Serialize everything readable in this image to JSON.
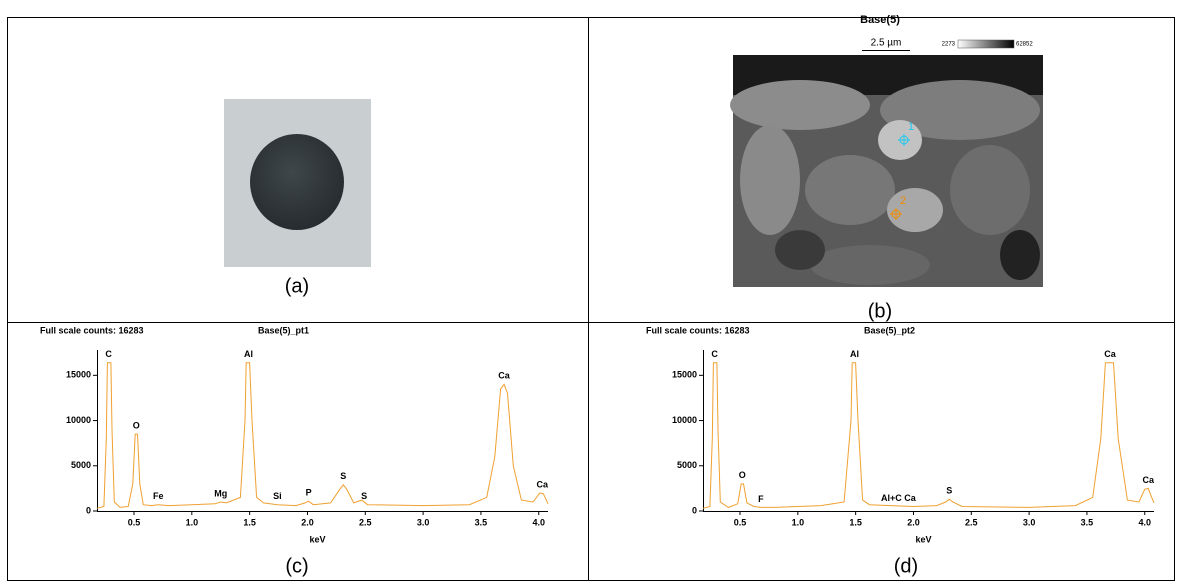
{
  "panels": {
    "a": "(a)",
    "b": "(b)",
    "c": "(c)",
    "d": "(d)"
  },
  "sem": {
    "title": "Base(5)",
    "scale_bar": "2.5 µm",
    "colorbar_min": 2273,
    "colorbar_max": 62852,
    "points": [
      1,
      2
    ]
  },
  "chart_data": [
    {
      "type": "line",
      "header": "Full scale counts: 16283",
      "title": "Base(5)_pt1",
      "x_label": "keV",
      "color": "#f0a030",
      "x": [
        0.18,
        0.24,
        0.26,
        0.27,
        0.3,
        0.31,
        0.33,
        0.38,
        0.45,
        0.49,
        0.51,
        0.53,
        0.55,
        0.58,
        0.65,
        0.71,
        0.8,
        1.0,
        1.2,
        1.25,
        1.3,
        1.42,
        1.46,
        1.47,
        1.5,
        1.52,
        1.56,
        1.62,
        1.74,
        1.9,
        1.98,
        2.01,
        2.05,
        2.2,
        2.28,
        2.31,
        2.34,
        2.4,
        2.47,
        2.52,
        3.0,
        3.4,
        3.55,
        3.62,
        3.67,
        3.7,
        3.73,
        3.78,
        3.85,
        3.95,
        4.01,
        4.04,
        4.08
      ],
      "values": [
        300,
        500,
        8000,
        16400,
        16400,
        9000,
        1000,
        400,
        500,
        3000,
        8500,
        8500,
        3000,
        700,
        600,
        700,
        600,
        700,
        800,
        1000,
        900,
        1500,
        10000,
        16400,
        16400,
        10000,
        1500,
        900,
        700,
        600,
        900,
        1100,
        700,
        900,
        2400,
        2900,
        2400,
        900,
        1200,
        700,
        600,
        700,
        1500,
        6000,
        13500,
        14000,
        13000,
        5000,
        1200,
        1000,
        2000,
        1900,
        800
      ],
      "xlim": [
        0.18,
        4.08
      ],
      "ylim": [
        0,
        17800
      ],
      "xticks": [
        0.5,
        {
          "value": 1,
          "label": "1.0"
        },
        1.5,
        {
          "value": 2,
          "label": "2.0"
        },
        2.5,
        {
          "value": 3,
          "label": "3.0"
        },
        3.5,
        {
          "value": 4,
          "label": "4.0"
        }
      ],
      "yticks": [
        0,
        5000,
        10000,
        15000
      ],
      "peaks": [
        {
          "label": "C",
          "x": 0.28,
          "y": 16400
        },
        {
          "label": "O",
          "x": 0.52,
          "y": 8500
        },
        {
          "label": "Fe",
          "x": 0.71,
          "y": 700
        },
        {
          "label": "Mg",
          "x": 1.25,
          "y": 1000
        },
        {
          "label": "Al",
          "x": 1.49,
          "y": 16400
        },
        {
          "label": "Si",
          "x": 1.74,
          "y": 700
        },
        {
          "label": "P",
          "x": 2.01,
          "y": 1100
        },
        {
          "label": "S",
          "x": 2.31,
          "y": 2900
        },
        {
          "label": "S",
          "x": 2.49,
          "y": 700
        },
        {
          "label": "Ca",
          "x": 3.7,
          "y": 14000
        },
        {
          "label": "Ca",
          "x": 4.03,
          "y": 2000
        }
      ]
    },
    {
      "type": "line",
      "header": "Full scale counts: 16283",
      "title": "Base(5)_pt2",
      "x_label": "keV",
      "color": "#f0a030",
      "x": [
        0.18,
        0.24,
        0.26,
        0.27,
        0.3,
        0.31,
        0.33,
        0.4,
        0.48,
        0.51,
        0.53,
        0.56,
        0.62,
        0.68,
        0.8,
        1.0,
        1.2,
        1.4,
        1.46,
        1.47,
        1.5,
        1.52,
        1.56,
        1.62,
        1.8,
        2.0,
        2.2,
        2.28,
        2.31,
        2.34,
        2.42,
        3.0,
        3.4,
        3.55,
        3.62,
        3.66,
        3.73,
        3.77,
        3.85,
        3.95,
        4.0,
        4.03,
        4.06,
        4.08
      ],
      "values": [
        300,
        500,
        8000,
        16400,
        16400,
        9000,
        1000,
        400,
        800,
        3000,
        3000,
        900,
        500,
        400,
        400,
        500,
        600,
        1000,
        10000,
        16400,
        16400,
        10000,
        1200,
        700,
        600,
        500,
        600,
        1000,
        1300,
        1000,
        500,
        400,
        600,
        1500,
        8000,
        16400,
        16400,
        8000,
        1200,
        1000,
        2400,
        2500,
        1500,
        900
      ],
      "xlim": [
        0.18,
        4.08
      ],
      "ylim": [
        0,
        17800
      ],
      "xticks": [
        0.5,
        {
          "value": 1,
          "label": "1.0"
        },
        1.5,
        {
          "value": 2,
          "label": "2.0"
        },
        2.5,
        {
          "value": 3,
          "label": "3.0"
        },
        3.5,
        {
          "value": 4,
          "label": "4.0"
        }
      ],
      "yticks": [
        0,
        5000,
        10000,
        15000
      ],
      "peaks": [
        {
          "label": "C",
          "x": 0.28,
          "y": 16400
        },
        {
          "label": "O",
          "x": 0.52,
          "y": 3000
        },
        {
          "label": "F",
          "x": 0.68,
          "y": 400
        },
        {
          "label": "Al",
          "x": 1.49,
          "y": 16400
        },
        {
          "label": "Al+C Ca",
          "x": 1.87,
          "y": 500
        },
        {
          "label": "S",
          "x": 2.31,
          "y": 1300
        },
        {
          "label": "Ca",
          "x": 3.7,
          "y": 16400
        },
        {
          "label": "Ca",
          "x": 4.03,
          "y": 2500
        }
      ]
    }
  ]
}
